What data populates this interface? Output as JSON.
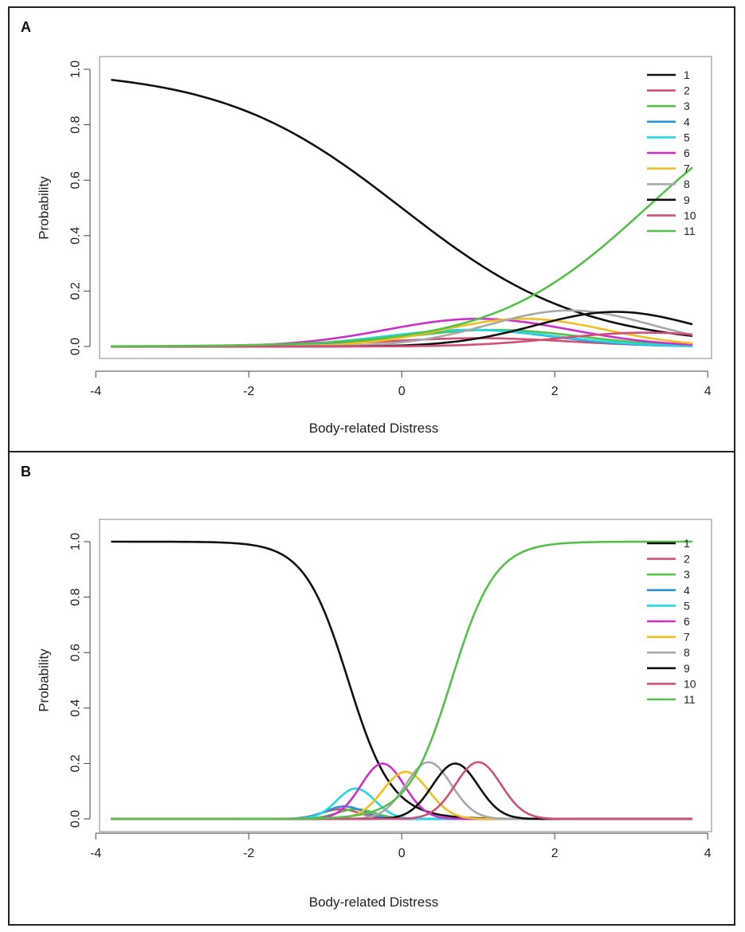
{
  "chart_data": [
    {
      "type": "line",
      "panel_label": "A",
      "xlabel": "Body-related Distress",
      "ylabel": "Probability",
      "xlim": [
        -3.8,
        3.8
      ],
      "ylim": [
        0,
        1.0
      ],
      "x_ticks": [
        "-4",
        "-2",
        "0",
        "2",
        "4"
      ],
      "x_tick_values": [
        -4,
        -2,
        0,
        2,
        4
      ],
      "y_ticks": [
        "0.0",
        "0.2",
        "0.4",
        "0.6",
        "0.8",
        "1.0"
      ],
      "y_tick_values": [
        0,
        0.2,
        0.4,
        0.6,
        0.8,
        1.0
      ],
      "legend_position": "top-right",
      "series": [
        {
          "name": "1",
          "color": "#111111",
          "model": "first",
          "center": 0.0,
          "slope": 0.85
        },
        {
          "name": "2",
          "color": "#d0507a",
          "model": "peak",
          "center": 1.0,
          "width": 1.7,
          "peak": 0.03
        },
        {
          "name": "3",
          "color": "#55c04a",
          "model": "peak",
          "center": 1.2,
          "width": 1.6,
          "peak": 0.06
        },
        {
          "name": "4",
          "color": "#2d8fd4",
          "model": "peak",
          "center": 0.9,
          "width": 1.5,
          "peak": 0.06
        },
        {
          "name": "5",
          "color": "#22d8e6",
          "model": "peak",
          "center": 0.9,
          "width": 1.6,
          "peak": 0.06
        },
        {
          "name": "6",
          "color": "#cc2fcc",
          "model": "peak",
          "center": 1.0,
          "width": 1.7,
          "peak": 0.1
        },
        {
          "name": "7",
          "color": "#f0c020",
          "model": "peak",
          "center": 1.6,
          "width": 1.5,
          "peak": 0.1
        },
        {
          "name": "8",
          "color": "#a8a8a8",
          "model": "peak",
          "center": 2.2,
          "width": 1.5,
          "peak": 0.13
        },
        {
          "name": "9",
          "color": "#111111",
          "model": "peak",
          "center": 2.8,
          "width": 1.5,
          "peak": 0.125
        },
        {
          "name": "10",
          "color": "#d0507a",
          "model": "peak",
          "center": 3.2,
          "width": 1.6,
          "peak": 0.05
        },
        {
          "name": "11",
          "color": "#55c04a",
          "model": "last",
          "center": 3.2,
          "slope": 1.0
        }
      ]
    },
    {
      "type": "line",
      "panel_label": "B",
      "xlabel": "Body-related Distress",
      "ylabel": "Probability",
      "xlim": [
        -3.8,
        3.8
      ],
      "ylim": [
        0,
        1.0
      ],
      "x_ticks": [
        "-4",
        "-2",
        "0",
        "2",
        "4"
      ],
      "x_tick_values": [
        -4,
        -2,
        0,
        2,
        4
      ],
      "y_ticks": [
        "0.0",
        "0.2",
        "0.4",
        "0.6",
        "0.8",
        "1.0"
      ],
      "y_tick_values": [
        0,
        0.2,
        0.4,
        0.6,
        0.8,
        1.0
      ],
      "legend_position": "top-right",
      "series": [
        {
          "name": "1",
          "color": "#111111",
          "model": "first",
          "center": -0.7,
          "slope": 3.5
        },
        {
          "name": "2",
          "color": "#d0507a",
          "model": "peak",
          "center": -0.8,
          "width": 0.35,
          "peak": 0.035
        },
        {
          "name": "3",
          "color": "#55c04a",
          "model": "peak",
          "center": -0.6,
          "width": 0.35,
          "peak": 0.035
        },
        {
          "name": "4",
          "color": "#2d8fd4",
          "model": "peak",
          "center": -0.75,
          "width": 0.35,
          "peak": 0.045
        },
        {
          "name": "5",
          "color": "#22d8e6",
          "model": "peak",
          "center": -0.6,
          "width": 0.35,
          "peak": 0.11
        },
        {
          "name": "6",
          "color": "#cc2fcc",
          "model": "peak",
          "center": -0.25,
          "width": 0.4,
          "peak": 0.2
        },
        {
          "name": "7",
          "color": "#f0c020",
          "model": "peak",
          "center": 0.05,
          "width": 0.42,
          "peak": 0.17
        },
        {
          "name": "8",
          "color": "#a8a8a8",
          "model": "peak",
          "center": 0.35,
          "width": 0.42,
          "peak": 0.205
        },
        {
          "name": "9",
          "color": "#111111",
          "model": "peak",
          "center": 0.7,
          "width": 0.42,
          "peak": 0.2
        },
        {
          "name": "10",
          "color": "#d0507a",
          "model": "peak",
          "center": 1.0,
          "width": 0.42,
          "peak": 0.205
        },
        {
          "name": "11",
          "color": "#55c04a",
          "model": "last",
          "center": 0.65,
          "slope": 3.5
        }
      ]
    }
  ]
}
